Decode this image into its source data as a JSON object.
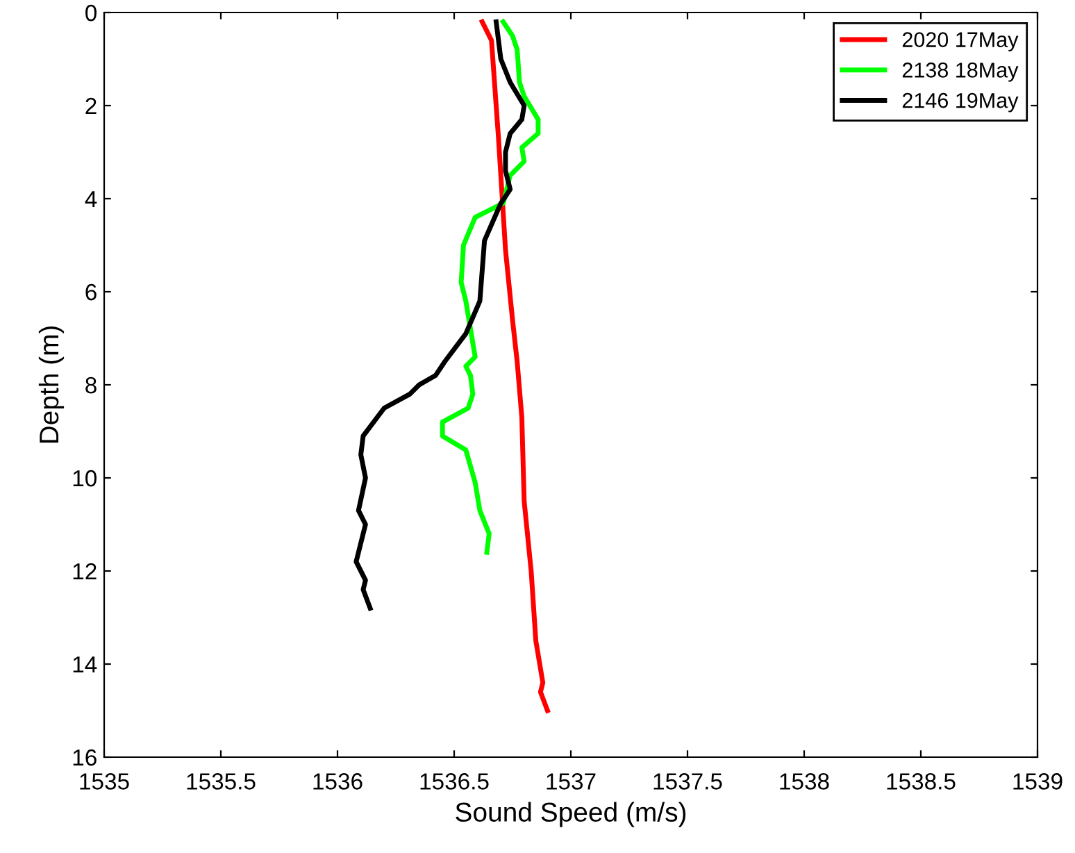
{
  "chart_data": {
    "type": "line",
    "xlabel": "Sound Speed (m/s)",
    "ylabel": "Depth (m)",
    "xlim": [
      1535,
      1539
    ],
    "xticks": [
      1535,
      1535.5,
      1536,
      1536.5,
      1537,
      1537.5,
      1538,
      1538.5,
      1539
    ],
    "ylim": [
      16,
      0
    ],
    "yticks": [
      0,
      2,
      4,
      6,
      8,
      10,
      12,
      14,
      16
    ],
    "grid": false,
    "legend": "top right",
    "line_style": "solid",
    "marker": "none",
    "series": [
      {
        "name": "2020 17May",
        "color": "#ff0000",
        "x": [
          1536.62,
          1536.66,
          1536.69,
          1536.72,
          1536.75,
          1536.77,
          1536.79,
          1536.8,
          1536.83,
          1536.85,
          1536.88,
          1536.87,
          1536.9
        ],
        "values": [
          0.2,
          0.6,
          2.7,
          5.1,
          6.6,
          7.5,
          8.7,
          10.5,
          12,
          13.5,
          14.4,
          14.6,
          15
        ]
      },
      {
        "name": "2138 18May",
        "color": "#00ff00",
        "x": [
          1536.71,
          1536.75,
          1536.77,
          1536.78,
          1536.8,
          1536.86,
          1536.86,
          1536.79,
          1536.8,
          1536.74,
          1536.71,
          1536.59,
          1536.54,
          1536.53,
          1536.55,
          1536.59,
          1536.55,
          1536.57,
          1536.58,
          1536.56,
          1536.45,
          1536.45,
          1536.55,
          1536.59,
          1536.61,
          1536.65,
          1536.64
        ],
        "values": [
          0.2,
          0.5,
          0.8,
          1.5,
          1.8,
          2.3,
          2.6,
          2.9,
          3.2,
          3.5,
          4.1,
          4.4,
          5.0,
          5.8,
          6.2,
          7.4,
          7.6,
          7.8,
          8.2,
          8.5,
          8.8,
          9.1,
          9.4,
          10.1,
          10.7,
          11.2,
          11.6
        ]
      },
      {
        "name": "2146 19May",
        "color": "#000000",
        "x": [
          1536.68,
          1536.7,
          1536.74,
          1536.8,
          1536.79,
          1536.74,
          1536.72,
          1536.72,
          1536.74,
          1536.7,
          1536.63,
          1536.61,
          1536.55,
          1536.46,
          1536.42,
          1536.35,
          1536.31,
          1536.2,
          1536.11,
          1536.1,
          1536.12,
          1536.09,
          1536.12,
          1536.08,
          1536.12,
          1536.11,
          1536.14
        ],
        "values": [
          0.2,
          1.0,
          1.5,
          2.0,
          2.3,
          2.6,
          3.0,
          3.4,
          3.8,
          4.1,
          4.9,
          6.2,
          6.9,
          7.5,
          7.8,
          8.0,
          8.2,
          8.5,
          9.1,
          9.5,
          10.0,
          10.7,
          11.0,
          11.8,
          12.2,
          12.4,
          12.8
        ]
      }
    ]
  }
}
